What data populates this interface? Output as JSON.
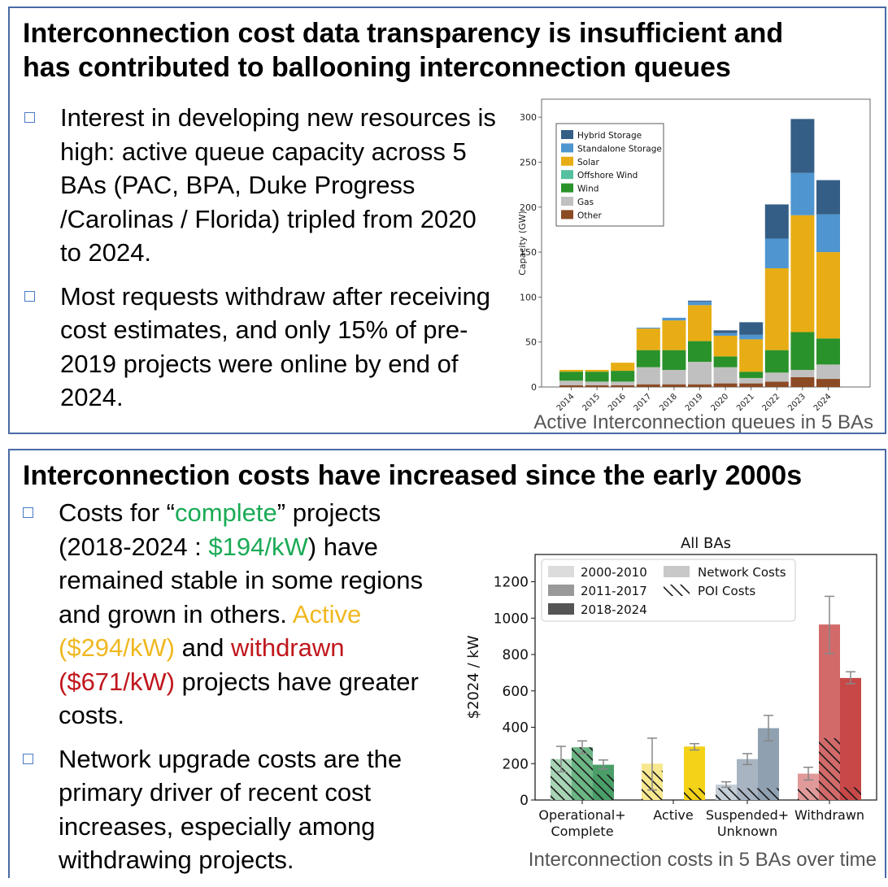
{
  "top": {
    "title_line1": "Interconnection cost data transparency is insufficient and",
    "title_line2": "has contributed to ballooning interconnection queues",
    "bullet1": "Interest in developing new resources is high: active queue capacity across 5 BAs (PAC, BPA, Duke Progress /Carolinas / Florida) tripled from 2020 to 2024.",
    "bullet2": "Most requests withdraw after receiving cost estimates, and only 15% of pre-2019 projects were online by end of 2024.",
    "caption": "Active Interconnection queues in 5 BAs"
  },
  "bottom": {
    "title": "Interconnection costs have increased since the early 2000s",
    "b1_part1": "Costs for “",
    "b1_complete": "complete",
    "b1_part2": "” projects (2018-2024 : ",
    "b1_cost": "$194/kW",
    "b1_part3": ") have remained stable in some regions and grown in others. ",
    "b1_active": "Active ($294/kW)",
    "b1_and": " and ",
    "b1_withdrawn": "withdrawn ($671/kW)",
    "b1_part4": " projects have greater costs.",
    "bullet2": "Network upgrade costs are the primary driver of recent cost increases, especially among withdrawing projects.",
    "caption": "Interconnection costs in 5 BAs over time"
  },
  "chart_data": [
    {
      "type": "bar",
      "stacked": true,
      "title": "",
      "xlabel": "",
      "ylabel": "Capacity (GW)",
      "ylim": [
        0,
        320
      ],
      "yticks": [
        0,
        50,
        100,
        150,
        200,
        250,
        300
      ],
      "categories": [
        "2014",
        "2015",
        "2016",
        "2017",
        "2018",
        "2019",
        "2020",
        "2021",
        "2022",
        "2023",
        "2024"
      ],
      "legend_position": "top-left",
      "series": [
        {
          "name": "Other",
          "color": "#8b4a24",
          "values": [
            2,
            2,
            2,
            3,
            3,
            3,
            4,
            4,
            6,
            11,
            9
          ]
        },
        {
          "name": "Gas",
          "color": "#c0c0c0",
          "values": [
            5,
            4,
            4,
            19,
            16,
            25,
            18,
            6,
            10,
            8,
            16
          ]
        },
        {
          "name": "Wind",
          "color": "#2a922a",
          "values": [
            10,
            11,
            12,
            19,
            22,
            23,
            12,
            7,
            25,
            42,
            29
          ]
        },
        {
          "name": "Offshore Wind",
          "color": "#55c0a0",
          "values": [
            0,
            0,
            0,
            0,
            0,
            0,
            0,
            0,
            0,
            0,
            0
          ]
        },
        {
          "name": "Solar",
          "color": "#e8ad14",
          "values": [
            2,
            2,
            9,
            24,
            33,
            40,
            23,
            36,
            91,
            130,
            96
          ]
        },
        {
          "name": "Standalone Storage",
          "color": "#4f95d0",
          "values": [
            0,
            0,
            0,
            1,
            3,
            4,
            3,
            5,
            33,
            47,
            42
          ]
        },
        {
          "name": "Hybrid Storage",
          "color": "#345e86",
          "values": [
            0,
            0,
            0,
            0,
            0,
            1,
            3,
            14,
            38,
            60,
            38
          ]
        }
      ]
    },
    {
      "type": "bar",
      "title": "All BAs",
      "xlabel": "",
      "ylabel": "$2024 / kW",
      "ylim": [
        0,
        1350
      ],
      "yticks": [
        0,
        200,
        400,
        600,
        800,
        1000,
        1200
      ],
      "categories": [
        "Operational+\nComplete",
        "Active",
        "Suspended+\nUnknown",
        "Withdrawn"
      ],
      "periods": [
        "2000-2010",
        "2011-2017",
        "2018-2024"
      ],
      "legend_position": "top-left",
      "legend": [
        "2000-2010",
        "2011-2017",
        "2018-2024",
        "Network Costs",
        "POI Costs"
      ],
      "groups": [
        {
          "category": "Operational+\nComplete",
          "colors": [
            "#a8d4b6",
            "#6cb585",
            "#4a9e68"
          ],
          "total": [
            225,
            290,
            194
          ],
          "poi": [
            225,
            290,
            140
          ],
          "err_low": [
            155,
            255,
            170
          ],
          "err_high": [
            295,
            325,
            220
          ]
        },
        {
          "category": "Active",
          "colors": [
            "#f7e890",
            "#f4d838",
            "#f3d218"
          ],
          "total": [
            200,
            null,
            294
          ],
          "poi": [
            160,
            null,
            65
          ],
          "err_low": [
            55,
            null,
            275
          ],
          "err_high": [
            340,
            null,
            310
          ]
        },
        {
          "category": "Suspended+\nUnknown",
          "colors": [
            "#c5cfd8",
            "#a8b4c2",
            "#8fa0b0"
          ],
          "total": [
            85,
            225,
            395
          ],
          "poi": [
            65,
            65,
            65
          ],
          "err_low": [
            70,
            195,
            325
          ],
          "err_high": [
            100,
            255,
            465
          ]
        },
        {
          "category": "Withdrawn",
          "colors": [
            "#e09a9a",
            "#d26a6a",
            "#c84848"
          ],
          "total": [
            145,
            965,
            671
          ],
          "poi": [
            65,
            340,
            70
          ],
          "err_low": [
            110,
            805,
            640
          ],
          "err_high": [
            180,
            1120,
            705
          ]
        }
      ]
    }
  ]
}
